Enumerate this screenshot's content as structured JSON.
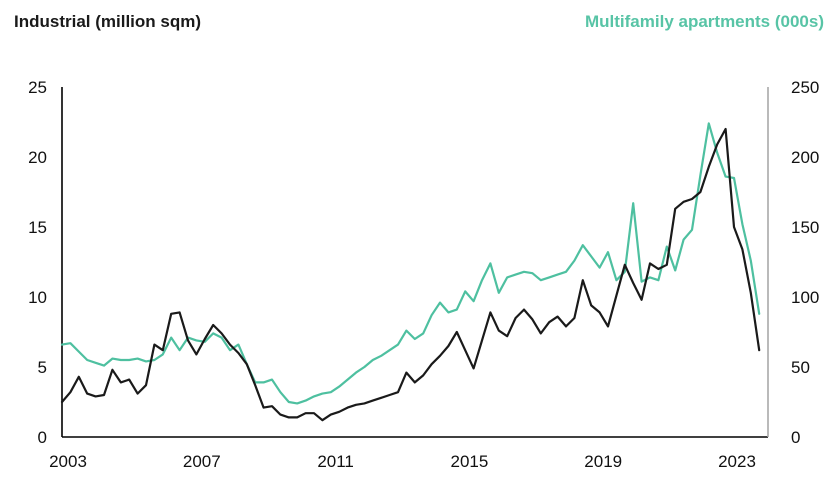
{
  "titles": {
    "left": "Industrial (million sqm)",
    "right": "Multifamily apartments (000s)"
  },
  "colors": {
    "industrial_line": "#1a1a1a",
    "multifamily_line": "#4ec0a0",
    "multifamily_title": "#58c4a6",
    "axis_left_bottom": "#000000",
    "axis_right": "#a8a8a8",
    "tick_text": "#111111",
    "background": "#ffffff"
  },
  "chart_data": {
    "type": "line",
    "frequency": "quarterly",
    "start": "2003Q1",
    "end": "2023Q4",
    "x_tick_years": [
      2003,
      2007,
      2011,
      2015,
      2019,
      2023
    ],
    "x_tick_labels": [
      "2003",
      "2007",
      "2011",
      "2015",
      "2019",
      "2023"
    ],
    "left_axis": {
      "label": "Industrial (million sqm)",
      "range": [
        0,
        25
      ],
      "ticks": [
        0,
        5,
        10,
        15,
        20,
        25
      ],
      "tick_labels": [
        "0",
        "5",
        "10",
        "15",
        "20",
        "25"
      ]
    },
    "right_axis": {
      "label": "Multifamily apartments (000s)",
      "range": [
        0,
        250
      ],
      "ticks": [
        0,
        50,
        100,
        150,
        200,
        250
      ],
      "tick_labels": [
        "0",
        "50",
        "100",
        "150",
        "200",
        "250"
      ]
    },
    "grid": false,
    "legend_position": "titles-above-axes",
    "series": [
      {
        "name": "Industrial (million sqm)",
        "axis": "left",
        "color": "#1a1a1a",
        "values": [
          2.5,
          3.2,
          4.3,
          3.1,
          2.9,
          3.0,
          4.8,
          3.9,
          4.1,
          3.1,
          3.7,
          6.6,
          6.2,
          8.8,
          8.9,
          6.9,
          5.9,
          7.0,
          8.0,
          7.4,
          6.6,
          6.0,
          5.2,
          3.7,
          2.1,
          2.2,
          1.6,
          1.4,
          1.4,
          1.7,
          1.7,
          1.2,
          1.6,
          1.8,
          2.1,
          2.3,
          2.4,
          2.6,
          2.8,
          3.0,
          3.2,
          4.6,
          3.9,
          4.4,
          5.2,
          5.8,
          6.5,
          7.5,
          6.2,
          4.9,
          6.9,
          8.9,
          7.6,
          7.2,
          8.5,
          9.1,
          8.4,
          7.4,
          8.2,
          8.6,
          7.9,
          8.5,
          11.2,
          9.4,
          8.9,
          7.9,
          10.1,
          12.3,
          11.0,
          9.8,
          12.4,
          12.0,
          12.3,
          16.3,
          16.8,
          17.0,
          17.5,
          19.3,
          20.9,
          22.0,
          15.0,
          13.4,
          10.3,
          6.2
        ]
      },
      {
        "name": "Multifamily apartments (000s)",
        "axis": "right",
        "color": "#4ec0a0",
        "values": [
          66,
          67,
          61,
          55,
          53,
          51,
          56,
          55,
          55,
          56,
          54,
          55,
          59,
          71,
          62,
          71,
          69,
          68,
          74,
          71,
          62,
          66,
          52,
          39,
          39,
          41,
          32,
          25,
          24,
          26,
          29,
          31,
          32,
          36,
          41,
          46,
          50,
          55,
          58,
          62,
          66,
          76,
          70,
          74,
          87,
          96,
          89,
          91,
          104,
          97,
          112,
          124,
          103,
          114,
          116,
          118,
          117,
          112,
          114,
          116,
          118,
          126,
          137,
          129,
          121,
          132,
          112,
          118,
          167,
          111,
          114,
          112,
          136,
          119,
          141,
          148,
          187,
          224,
          203,
          186,
          185,
          152,
          126,
          88
        ]
      }
    ]
  }
}
